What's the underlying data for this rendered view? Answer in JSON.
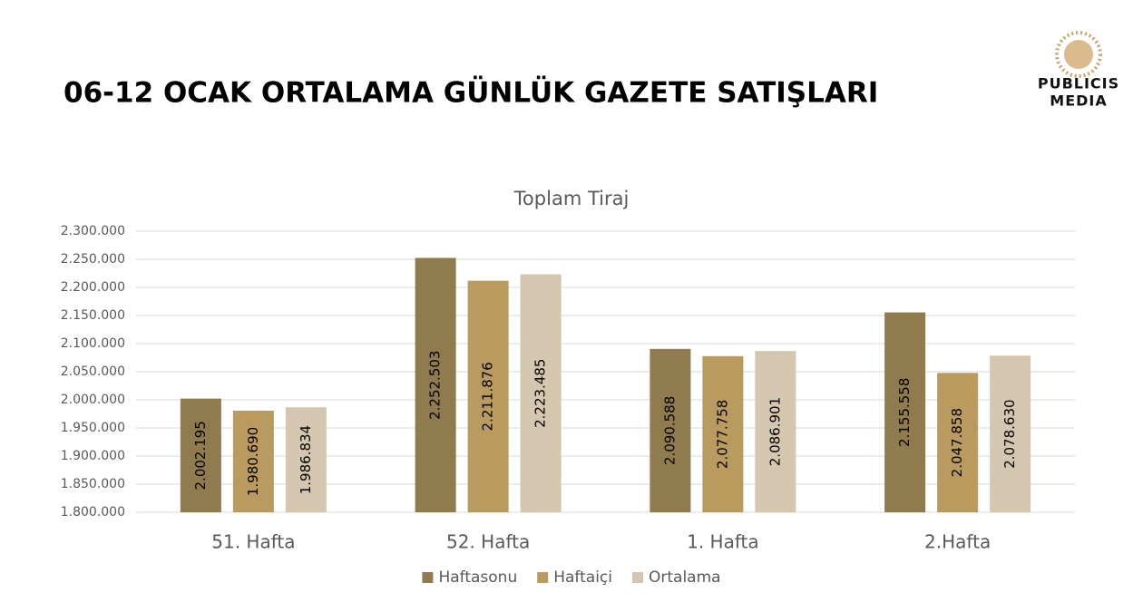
{
  "page": {
    "title": "06-12 OCAK ORTALAMA GÜNLÜK GAZETE SATIŞLARI",
    "logo": [
      "PUBLICIS",
      "MEDIA"
    ]
  },
  "chart_data": {
    "type": "bar",
    "title": "Toplam Tiraj",
    "categories": [
      "51. Hafta",
      "52. Hafta",
      "1. Hafta",
      "2.Hafta"
    ],
    "series": [
      {
        "name": "Haftasonu",
        "color": "#907b4f",
        "values": [
          2002195,
          2252503,
          2090588,
          2155558
        ],
        "value_labels": [
          "2.002.195",
          "2.252.503",
          "2.090.588",
          "2.155.558"
        ]
      },
      {
        "name": "Haftaiçi",
        "color": "#b99a5f",
        "values": [
          1980690,
          2211876,
          2077758,
          2047858
        ],
        "value_labels": [
          "1.980.690",
          "2.211.876",
          "2.077.758",
          "2.047.858"
        ]
      },
      {
        "name": "Ortalama",
        "color": "#d5c6b0",
        "values": [
          1986834,
          2223485,
          2086901,
          2078630
        ],
        "value_labels": [
          "1.986.834",
          "2.223.485",
          "2.086.901",
          "2.078.630"
        ]
      }
    ],
    "ylim": [
      1800000,
      2300000
    ],
    "yticks": [
      {
        "value": 1800000,
        "label": "1.800.000"
      },
      {
        "value": 1850000,
        "label": "1.850.000"
      },
      {
        "value": 1900000,
        "label": "1.900.000"
      },
      {
        "value": 1950000,
        "label": "1.950.000"
      },
      {
        "value": 2000000,
        "label": "2.000.000"
      },
      {
        "value": 2050000,
        "label": "2.050.000"
      },
      {
        "value": 2100000,
        "label": "2.100.000"
      },
      {
        "value": 2150000,
        "label": "2.150.000"
      },
      {
        "value": 2200000,
        "label": "2.200.000"
      },
      {
        "value": 2250000,
        "label": "2.250.000"
      },
      {
        "value": 2300000,
        "label": "2.300.000"
      }
    ],
    "grid": true,
    "legend": "bottom"
  }
}
